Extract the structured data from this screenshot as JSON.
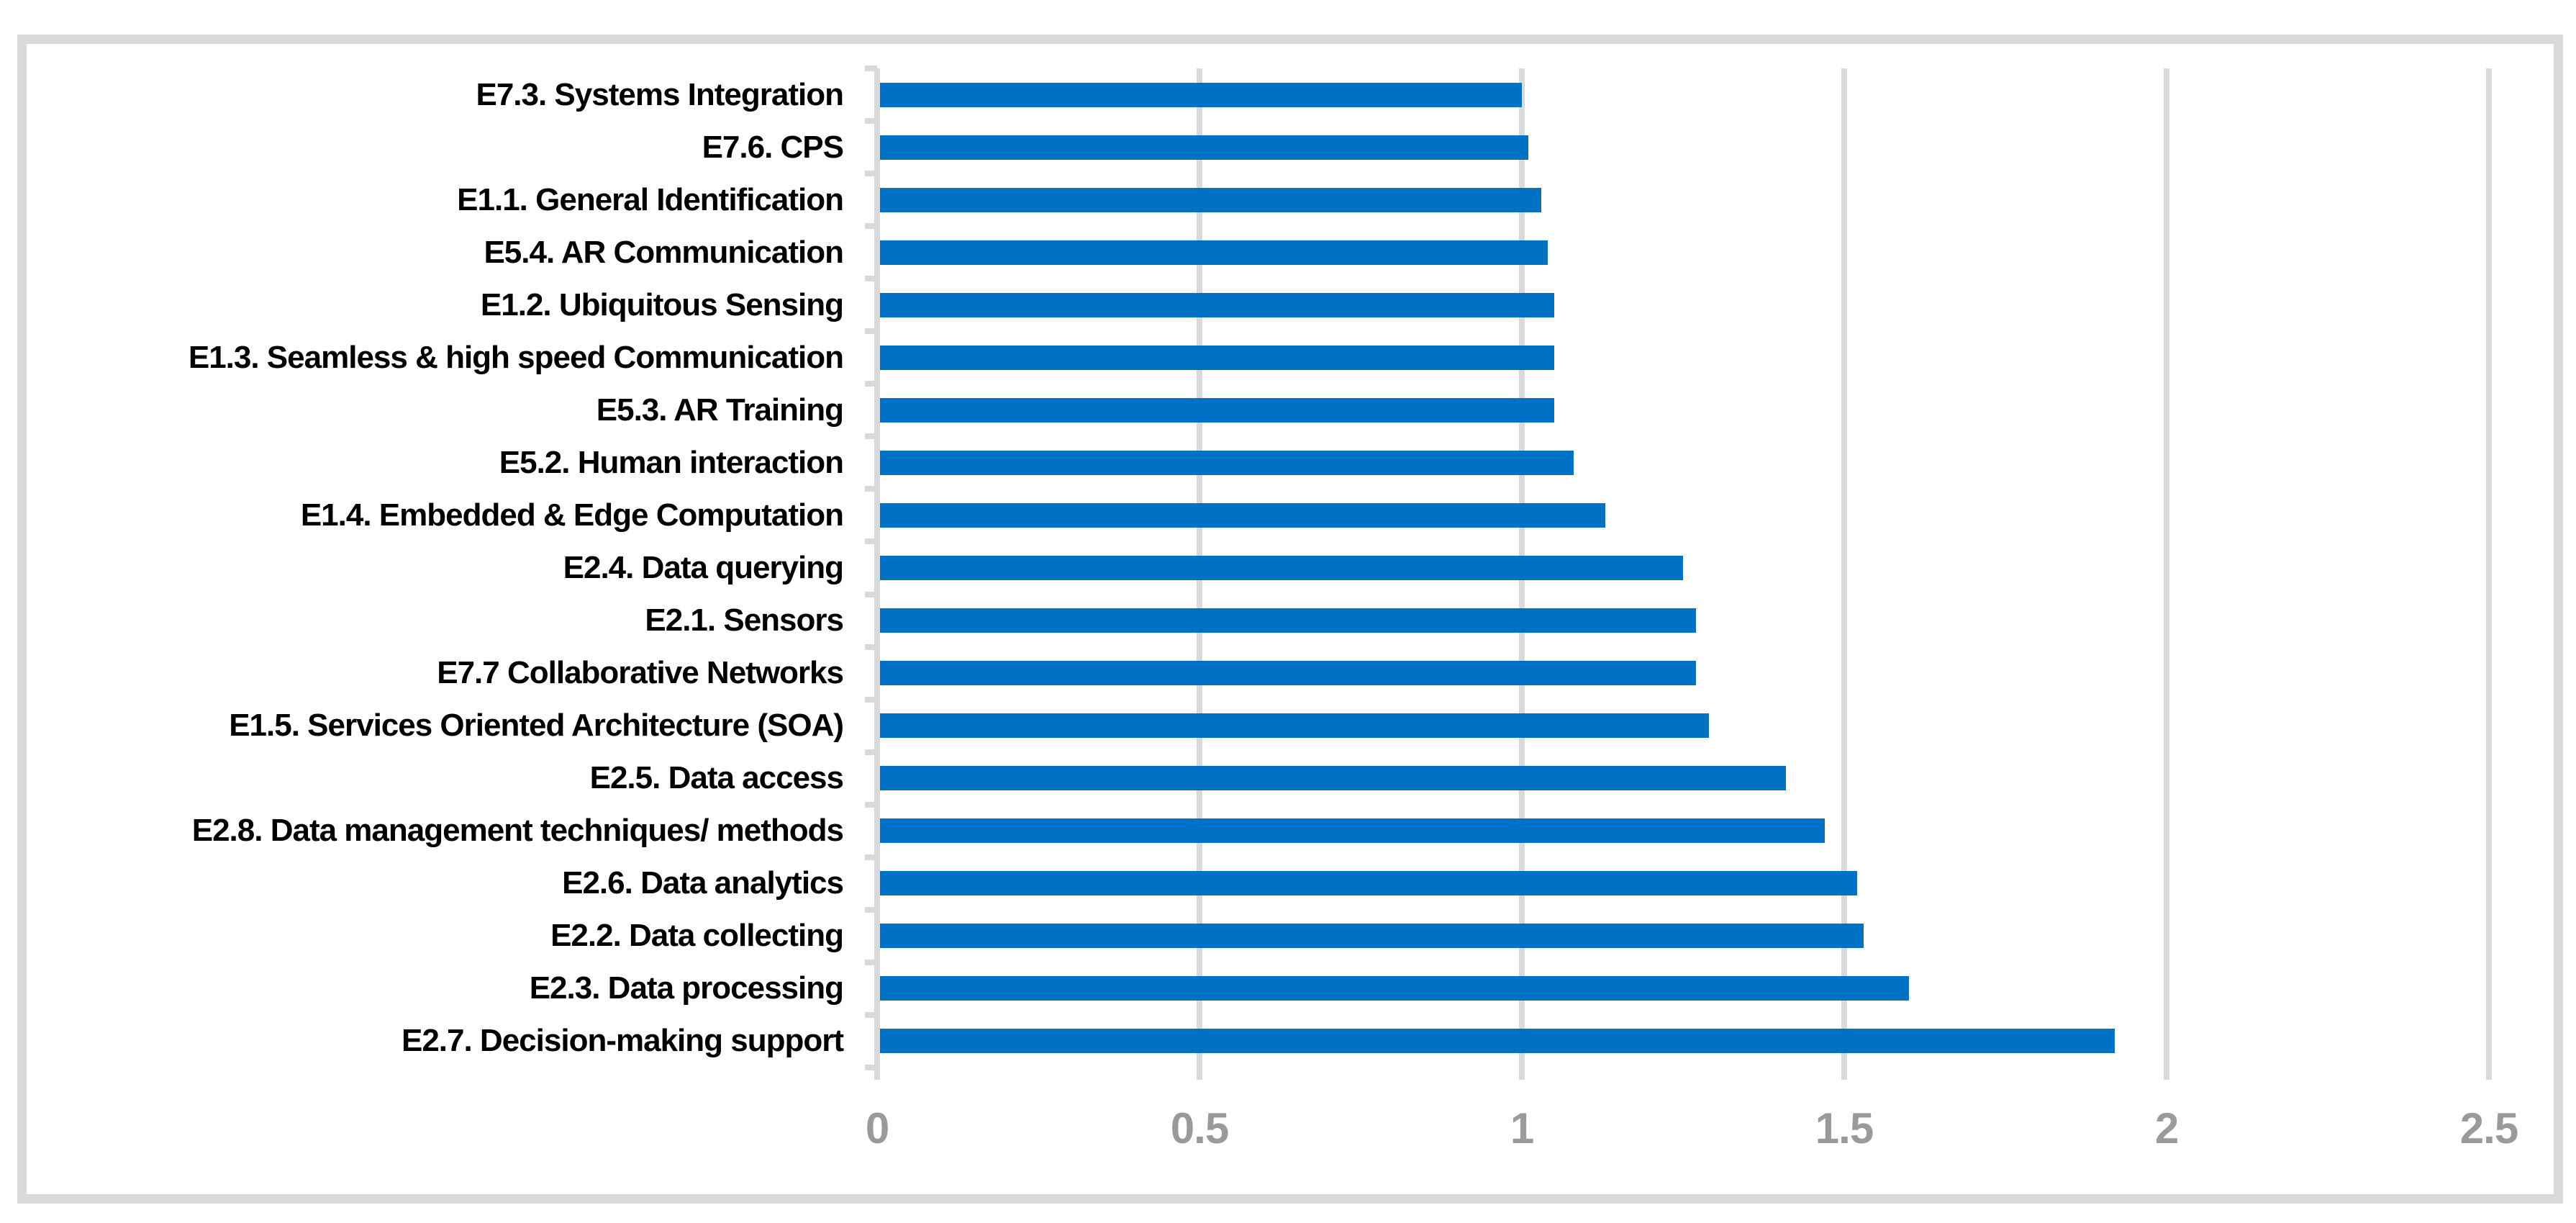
{
  "figure": {
    "background_color": "#FFFFFF",
    "frame_color": "#D9D9D9"
  },
  "chart_data": {
    "type": "bar",
    "orientation": "horizontal",
    "categories": [
      "E7.3. Systems Integration",
      "E7.6. CPS",
      "E1.1. General Identification",
      "E5.4. AR Communication",
      "E1.2. Ubiquitous Sensing",
      "E1.3. Seamless & high speed Communication",
      "E5.3. AR Training",
      "E5.2. Human interaction",
      "E1.4. Embedded & Edge Computation",
      "E2.4. Data querying",
      "E2.1. Sensors",
      "E7.7 Collaborative Networks",
      "E1.5. Services Oriented Architecture (SOA)",
      "E2.5. Data access",
      "E2.8. Data management techniques/ methods",
      "E2.6. Data analytics",
      "E2.2. Data collecting",
      "E2.3. Data processing",
      "E2.7. Decision-making support"
    ],
    "values": [
      1.0,
      1.01,
      1.03,
      1.04,
      1.05,
      1.05,
      1.05,
      1.08,
      1.13,
      1.25,
      1.27,
      1.27,
      1.29,
      1.41,
      1.47,
      1.52,
      1.53,
      1.6,
      1.92
    ],
    "bar_color": "#0071C5",
    "xlim": [
      0,
      2.5
    ],
    "x_ticks": [
      "0",
      "0.5",
      "1",
      "1.5",
      "2",
      "2.5"
    ],
    "x_tick_values": [
      0,
      0.5,
      1,
      1.5,
      2,
      2.5
    ],
    "grid": true,
    "grid_color": "#D9D9D9",
    "tick_label_color": "#9A9A9A",
    "category_label_color": "#000000",
    "legend": false
  }
}
